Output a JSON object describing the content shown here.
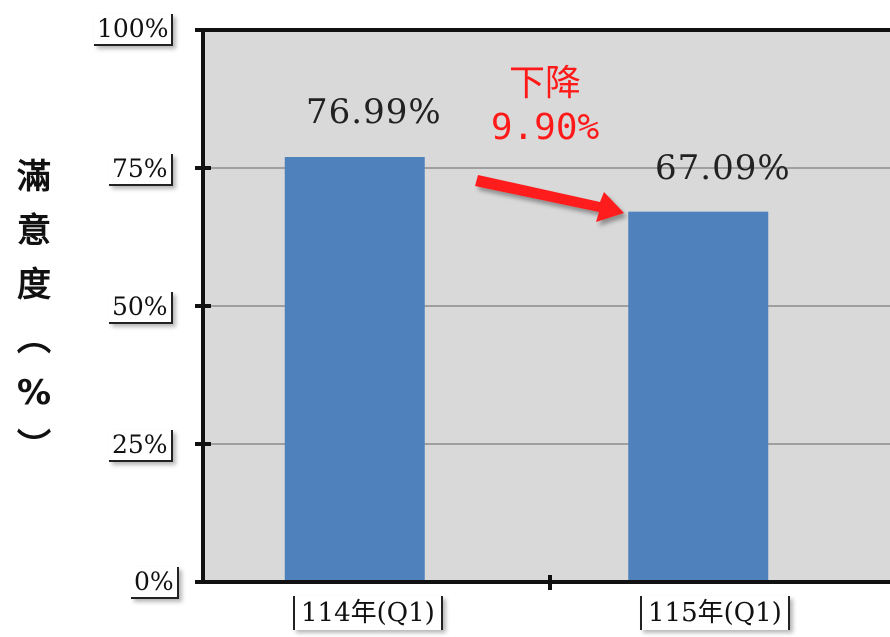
{
  "chart_data": {
    "type": "bar",
    "categories": [
      "114年(Q1)",
      "115年(Q1)"
    ],
    "values": [
      76.99,
      67.09
    ],
    "data_labels": [
      "76.99%",
      "67.09%"
    ],
    "ylabel": "滿意度(%)",
    "ylabel_chars": [
      "滿",
      "意",
      "度",
      "︵",
      "%",
      "︶"
    ],
    "ylim": [
      0,
      100
    ],
    "yticks": [
      0,
      25,
      50,
      75,
      100
    ],
    "ytick_labels": [
      "0%",
      "25%",
      "50%",
      "75%",
      "100%"
    ],
    "grid": true,
    "annotation": {
      "line1": "下降",
      "line2": "9.90%",
      "color": "#ff1a1a"
    },
    "colors": {
      "bar": "#4f81bd",
      "plot_background": "#d9d9d9",
      "gridline": "#8c8c8c"
    }
  }
}
